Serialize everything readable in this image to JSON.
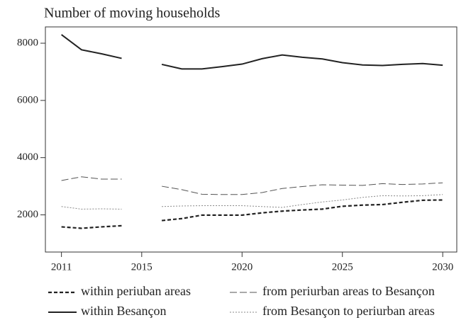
{
  "chart_data": {
    "type": "line",
    "title": "Number of moving households",
    "x": [
      2011,
      2012,
      2013,
      2014,
      2015,
      2016,
      2017,
      2018,
      2019,
      2020,
      2021,
      2022,
      2023,
      2024,
      2025,
      2026,
      2027,
      2028,
      2029,
      2030
    ],
    "series": [
      {
        "name": "within periuban areas",
        "color": "#222222",
        "dash": "dashed",
        "values": [
          1580,
          1530,
          1580,
          1620,
          null,
          1800,
          1870,
          1990,
          1990,
          1990,
          2070,
          2130,
          2170,
          2200,
          2300,
          2340,
          2360,
          2440,
          2510,
          2520
        ]
      },
      {
        "name": "from periurban areas to Besançon",
        "color": "#555555",
        "dash": "longdash",
        "values": [
          3200,
          3330,
          3250,
          3250,
          null,
          3000,
          2880,
          2720,
          2710,
          2710,
          2780,
          2920,
          2990,
          3050,
          3040,
          3030,
          3090,
          3060,
          3080,
          3120
        ]
      },
      {
        "name": "within Besançon",
        "color": "#222222",
        "dash": "solid",
        "values": [
          8300,
          7770,
          7630,
          7470,
          null,
          7260,
          7100,
          7100,
          7180,
          7270,
          7460,
          7590,
          7510,
          7450,
          7320,
          7240,
          7220,
          7260,
          7290,
          7230
        ]
      },
      {
        "name": "from Besançon to periurban areas",
        "color": "#888888",
        "dash": "dotted",
        "values": [
          2290,
          2200,
          2210,
          2200,
          null,
          2290,
          2310,
          2320,
          2320,
          2320,
          2290,
          2260,
          2360,
          2450,
          2520,
          2610,
          2670,
          2660,
          2670,
          2710
        ]
      }
    ],
    "xlim": [
      2010.2,
      2030.7
    ],
    "xticks": [
      2011,
      2015,
      2020,
      2025,
      2030
    ],
    "ylim": [
      700,
      8570
    ],
    "yticks": [
      2000,
      4000,
      6000,
      8000
    ],
    "grid": false
  }
}
